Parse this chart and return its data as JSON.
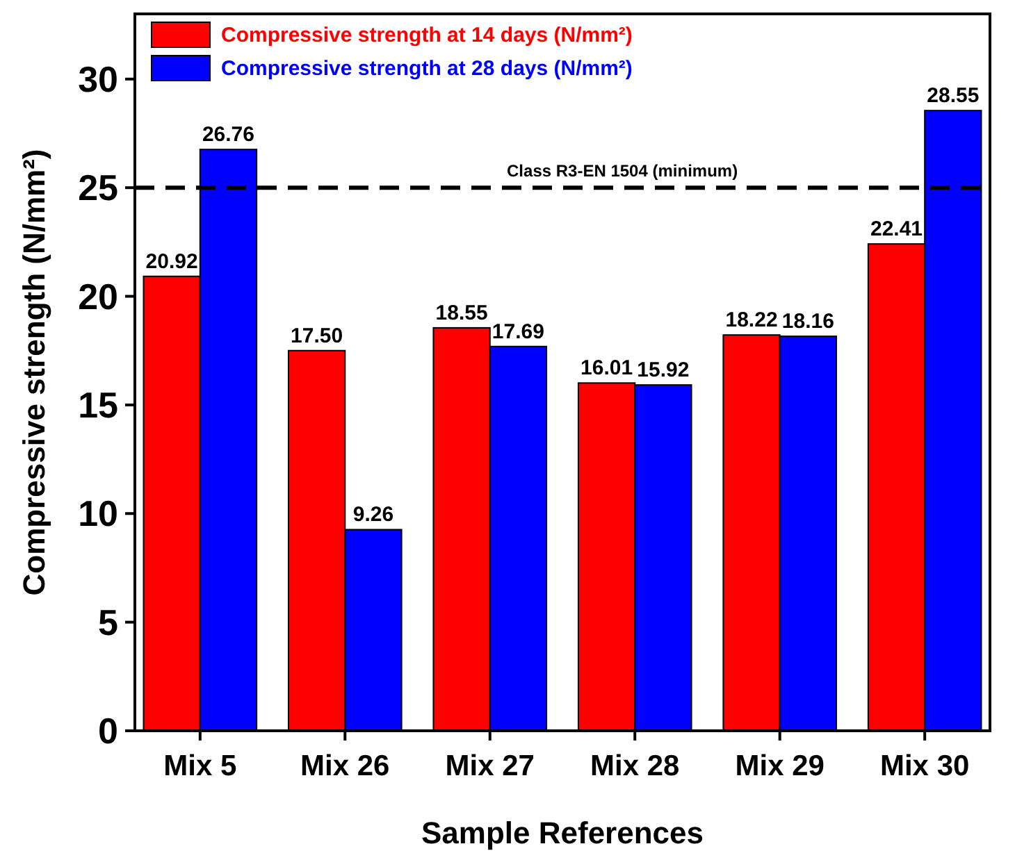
{
  "chart_data": {
    "type": "bar",
    "xlabel": "Sample References",
    "ylabel": "Compressive strength (N/mm²)",
    "categories": [
      "Mix 5",
      "Mix 26",
      "Mix 27",
      "Mix 28",
      "Mix 29",
      "Mix 30"
    ],
    "series": [
      {
        "name": "Compressive strength at 14 days (N/mm²)",
        "color": "#ff0000",
        "values": [
          20.92,
          17.5,
          18.55,
          16.01,
          18.22,
          22.41
        ],
        "value_labels": [
          "20.92",
          "17.50",
          "18.55",
          "16.01",
          "18.22",
          "22.41"
        ]
      },
      {
        "name": "Compressive strength at 28 days (N/mm²)",
        "color": "#0000ff",
        "values": [
          26.76,
          9.26,
          17.69,
          15.92,
          18.16,
          28.55
        ],
        "value_labels": [
          "26.76",
          "9.26",
          "17.69",
          "15.92",
          "18.16",
          "28.55"
        ]
      }
    ],
    "ylim": [
      0,
      33
    ],
    "yticks": [
      0,
      5,
      10,
      15,
      20,
      25,
      30
    ],
    "ref_lines": [
      {
        "axis": "y",
        "value": 25,
        "label": "Class R3-EN 1504 (minimum)",
        "color": "#000000",
        "line_style": "dashed"
      }
    ],
    "legend": "top left",
    "grid": false
  }
}
